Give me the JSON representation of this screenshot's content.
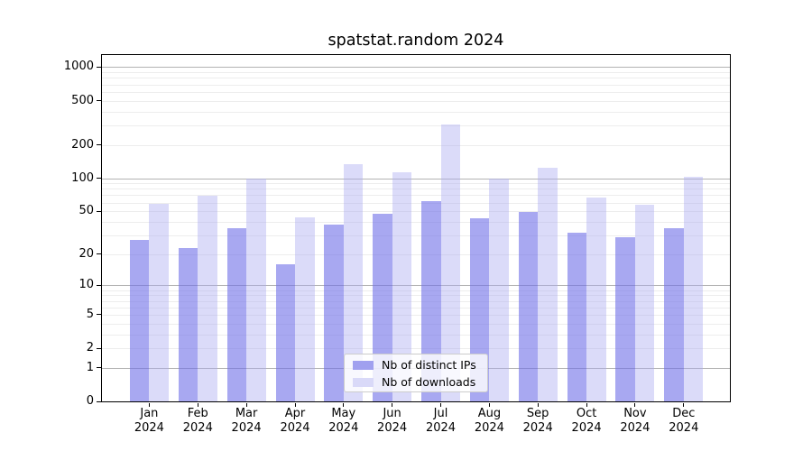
{
  "chart_data": {
    "type": "bar",
    "title": "spatstat.random 2024",
    "categories": [
      "Jan",
      "Feb",
      "Mar",
      "Apr",
      "May",
      "Jun",
      "Jul",
      "Aug",
      "Sep",
      "Oct",
      "Nov",
      "Dec"
    ],
    "year_label": "2024",
    "series": [
      {
        "name": "Nb of distinct IPs",
        "color": "#a0a0ef",
        "fill": "rgba(110,110,232,0.6)",
        "values": [
          27,
          23,
          35,
          16,
          38,
          47,
          62,
          43,
          49,
          32,
          29,
          35
        ]
      },
      {
        "name": "Nb of downloads",
        "color": "#d9d9f8",
        "fill": "rgba(170,170,240,0.42)",
        "values": [
          58,
          69,
          100,
          44,
          133,
          112,
          305,
          100,
          124,
          67,
          57,
          102
        ]
      }
    ],
    "xlabel": "",
    "ylabel": "",
    "yticks": [
      0,
      1,
      2,
      5,
      10,
      20,
      50,
      100,
      200,
      500,
      1000
    ],
    "yscale": "log1p",
    "ylim": [
      0,
      1200
    ],
    "grid": {
      "on": true,
      "minor_color": "#ededed",
      "major_color": "#b3b3b3",
      "major_lines_at": [
        1,
        10,
        100,
        1000
      ]
    },
    "legend": {
      "position": "lower center"
    },
    "colors": {
      "background": "#ffffff",
      "axis": "#000000",
      "text": "#000000"
    }
  }
}
